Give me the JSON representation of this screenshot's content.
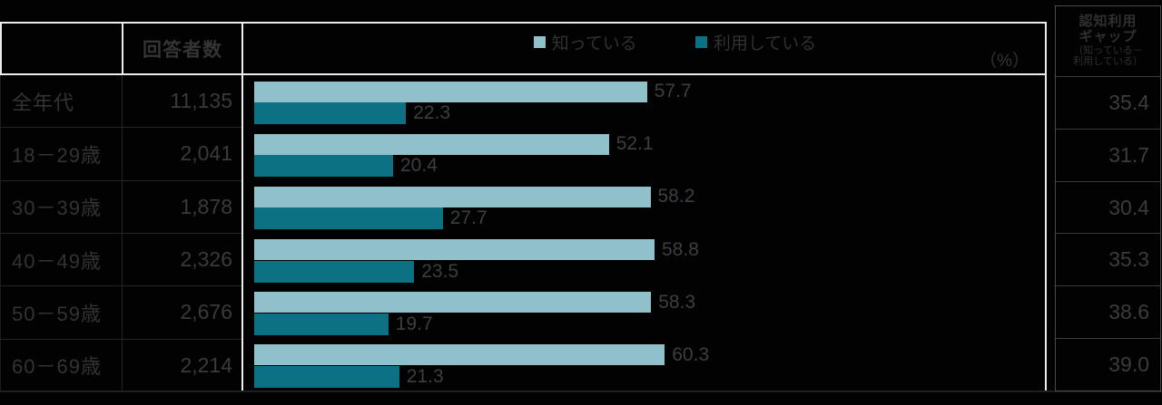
{
  "colors": {
    "background": "#020202",
    "know_bar": "#90c0ca",
    "use_bar": "#0b7183",
    "frame_white": "#ededed",
    "dim_text": "#333333"
  },
  "header": {
    "respondents_label": "回答者数",
    "unit_label": "（%）"
  },
  "legend": {
    "know_label": "知っている",
    "use_label": "利用している"
  },
  "gap_header": {
    "line1": "認知利用",
    "line2": "ギャップ",
    "line3": "（知っている－",
    "line4": "利用している）"
  },
  "rows": [
    {
      "label": "全年代",
      "respondents": "11,135",
      "know": "57.7",
      "use": "22.3",
      "gap": "35.4"
    },
    {
      "label": "18－29歳",
      "respondents": "2,041",
      "know": "52.1",
      "use": "20.4",
      "gap": "31.7"
    },
    {
      "label": "30－39歳",
      "respondents": "1,878",
      "know": "58.2",
      "use": "27.7",
      "gap": "30.4"
    },
    {
      "label": "40－49歳",
      "respondents": "2,326",
      "know": "58.8",
      "use": "23.5",
      "gap": "35.3"
    },
    {
      "label": "50－59歳",
      "respondents": "2,676",
      "know": "58.3",
      "use": "19.7",
      "gap": "38.6"
    },
    {
      "label": "60－69歳",
      "respondents": "2,214",
      "know": "60.3",
      "use": "21.3",
      "gap": "39.0"
    }
  ],
  "chart_data": {
    "type": "bar",
    "orientation": "horizontal",
    "title": "",
    "unit": "%",
    "xlim": [
      0,
      100
    ],
    "legend_position": "top",
    "value_labels": true,
    "categories": [
      "全年代",
      "18－29歳",
      "30－39歳",
      "40－49歳",
      "50－59歳",
      "60－69歳"
    ],
    "respondent_counts": [
      11135,
      2041,
      1878,
      2326,
      2676,
      2214
    ],
    "series": [
      {
        "name": "知っている",
        "color": "#90c0ca",
        "values": [
          57.7,
          52.1,
          58.2,
          58.8,
          58.3,
          60.3
        ]
      },
      {
        "name": "利用している",
        "color": "#0b7183",
        "values": [
          22.3,
          20.4,
          27.7,
          23.5,
          19.7,
          21.3
        ]
      }
    ],
    "gap_column": {
      "header": "認知利用ギャップ（知っている－利用している）",
      "values": [
        35.4,
        31.7,
        30.4,
        35.3,
        38.6,
        39.0
      ]
    }
  }
}
